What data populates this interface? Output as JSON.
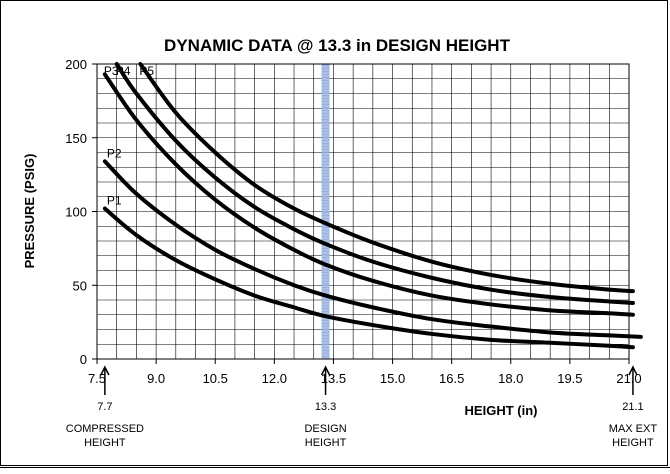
{
  "chart_data": {
    "type": "line",
    "title": "DYNAMIC DATA @ 13.3 in DESIGN HEIGHT",
    "xlabel": "HEIGHT (in)",
    "ylabel": "PRESSURE (PSIG)",
    "xlim": [
      7.5,
      21.0
    ],
    "ylim": [
      0,
      200
    ],
    "x_ticks": [
      7.5,
      9.0,
      10.5,
      12.0,
      13.5,
      15.0,
      16.5,
      18.0,
      19.5,
      21.0
    ],
    "x_tick_labels": [
      "7.5",
      "9.0",
      "10.5",
      "12.0",
      "13.5",
      "15.0",
      "16.5",
      "18.0",
      "19.5",
      "21.0"
    ],
    "y_ticks": [
      0,
      50,
      100,
      150,
      200
    ],
    "y_tick_labels": [
      "0",
      "50",
      "100",
      "150",
      "200"
    ],
    "x_minor_step": 0.5,
    "y_minor_step": 10,
    "grid": true,
    "legend": "none",
    "design_line": {
      "x": 13.3,
      "color": "#8faadc"
    },
    "series": [
      {
        "name": "P1",
        "color": "#000000",
        "x": [
          7.7,
          8.5,
          9.5,
          10.5,
          11.5,
          12.5,
          13.3,
          14.5,
          16.0,
          17.5,
          19.0,
          20.5,
          21.1
        ],
        "y": [
          102,
          84,
          67,
          54,
          43,
          35,
          29,
          23,
          17,
          13,
          11,
          9,
          8
        ]
      },
      {
        "name": "P2",
        "color": "#000000",
        "x": [
          7.7,
          8.5,
          9.5,
          10.5,
          11.5,
          12.5,
          13.3,
          14.5,
          16.0,
          17.5,
          19.0,
          20.5,
          21.3
        ],
        "y": [
          134,
          112,
          91,
          74,
          61,
          50,
          43,
          35,
          27,
          22,
          18,
          16,
          15
        ]
      },
      {
        "name": "P3",
        "color": "#000000",
        "x": [
          7.7,
          8.5,
          9.5,
          10.5,
          11.5,
          12.5,
          13.3,
          14.5,
          16.0,
          17.5,
          19.0,
          20.5,
          21.1
        ],
        "y": [
          193,
          162,
          132,
          108,
          89,
          74,
          64,
          53,
          43,
          37,
          33,
          31,
          30
        ]
      },
      {
        "name": "P4",
        "color": "#000000",
        "x": [
          8.0,
          8.5,
          9.5,
          10.5,
          11.5,
          12.5,
          13.3,
          14.5,
          16.0,
          17.5,
          19.0,
          20.5,
          21.1
        ],
        "y": [
          200,
          180,
          148,
          123,
          103,
          88,
          78,
          66,
          55,
          47,
          42,
          39,
          38
        ]
      },
      {
        "name": "P5",
        "color": "#000000",
        "x": [
          8.6,
          9.5,
          10.5,
          11.5,
          12.5,
          13.3,
          14.5,
          16.0,
          17.5,
          19.0,
          20.5,
          21.1
        ],
        "y": [
          200,
          167,
          140,
          118,
          102,
          92,
          79,
          66,
          57,
          51,
          47,
          46
        ]
      }
    ],
    "annotations": [
      {
        "x": 7.7,
        "value": "7.7",
        "lines": [
          "COMPRESSED",
          "HEIGHT"
        ]
      },
      {
        "x": 13.3,
        "value": "13.3",
        "lines": [
          "DESIGN",
          "HEIGHT"
        ]
      },
      {
        "x": 21.1,
        "value": "21.1",
        "lines": [
          "MAX EXT",
          "HEIGHT"
        ]
      }
    ]
  }
}
